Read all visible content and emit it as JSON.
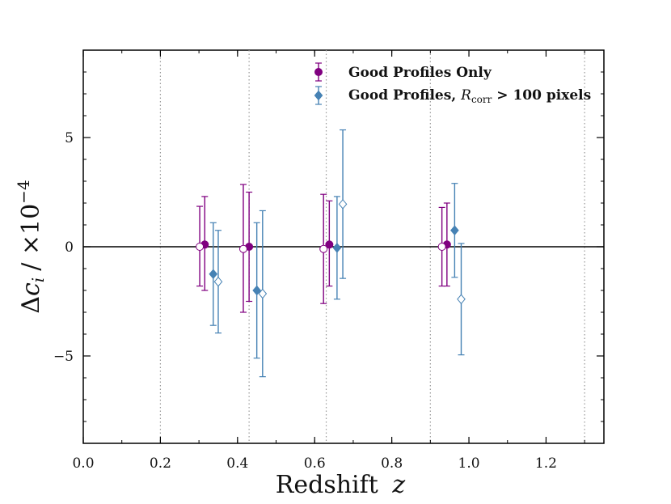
{
  "chart_data": {
    "type": "scatter",
    "xlabel": "Redshift",
    "xlabel_var": "z",
    "ylabel_main": "Δ",
    "ylabel_var": "c",
    "ylabel_sub": "i",
    "ylabel_unit": "/ ×10",
    "ylabel_exp": "−4",
    "xlim": [
      0.0,
      1.35
    ],
    "ylim": [
      -9.0,
      9.0
    ],
    "xticks": [
      0.0,
      0.2,
      0.4,
      0.6,
      0.8,
      1.0,
      1.2
    ],
    "xtick_labels": [
      "0.0",
      "0.2",
      "0.4",
      "0.6",
      "0.8",
      "1.0",
      "1.2"
    ],
    "yticks": [
      -5,
      0,
      5
    ],
    "ytick_labels": [
      "−5",
      "0",
      "5"
    ],
    "hline": 0,
    "vlines": [
      0.2,
      0.43,
      0.63,
      0.9,
      1.3
    ],
    "series": [
      {
        "name": "Good Profiles Only",
        "color": "#800080",
        "marker": "circle",
        "points": [
          {
            "x": 0.315,
            "y": 0.1,
            "yerr_low": 2.1,
            "yerr_high": 2.2
          },
          {
            "x": 0.43,
            "y": 0.0,
            "yerr_low": 2.5,
            "yerr_high": 2.5
          },
          {
            "x": 0.638,
            "y": 0.1,
            "yerr_low": 1.9,
            "yerr_high": 2.0
          },
          {
            "x": 0.943,
            "y": 0.1,
            "yerr_low": 1.9,
            "yerr_high": 1.9
          }
        ]
      },
      {
        "name": "Good Profiles Only (open)",
        "legend": false,
        "color": "#800080",
        "marker": "circle-open",
        "points": [
          {
            "x": 0.302,
            "y": 0.0,
            "yerr_low": 1.8,
            "yerr_high": 1.85
          },
          {
            "x": 0.415,
            "y": -0.1,
            "yerr_low": 2.9,
            "yerr_high": 2.95
          },
          {
            "x": 0.623,
            "y": -0.1,
            "yerr_low": 2.5,
            "yerr_high": 2.5
          },
          {
            "x": 0.93,
            "y": 0.0,
            "yerr_low": 1.8,
            "yerr_high": 1.8
          }
        ]
      },
      {
        "name": "Good Profiles, R_corr > 100 pixels",
        "color": "#4682b4",
        "marker": "diamond",
        "points": [
          {
            "x": 0.337,
            "y": -1.25,
            "yerr_low": 2.35,
            "yerr_high": 2.35
          },
          {
            "x": 0.45,
            "y": -2.0,
            "yerr_low": 3.1,
            "yerr_high": 3.1
          },
          {
            "x": 0.658,
            "y": -0.05,
            "yerr_low": 2.35,
            "yerr_high": 2.35
          },
          {
            "x": 0.963,
            "y": 0.75,
            "yerr_low": 2.15,
            "yerr_high": 2.15
          }
        ]
      },
      {
        "name": "Good Profiles, R_corr > 100 pixels (open)",
        "legend": false,
        "color": "#4682b4",
        "marker": "diamond-open",
        "points": [
          {
            "x": 0.35,
            "y": -1.6,
            "yerr_low": 2.35,
            "yerr_high": 2.35
          },
          {
            "x": 0.465,
            "y": -2.15,
            "yerr_low": 3.8,
            "yerr_high": 3.8
          },
          {
            "x": 0.673,
            "y": 1.95,
            "yerr_low": 3.4,
            "yerr_high": 3.4
          },
          {
            "x": 0.98,
            "y": -2.4,
            "yerr_low": 2.55,
            "yerr_high": 2.55
          }
        ]
      }
    ],
    "legend": {
      "position": "top-right",
      "entries": [
        {
          "label": "Good Profiles Only",
          "marker": "circle",
          "color": "#800080"
        },
        {
          "label_prefix": "Good Profiles, ",
          "label_var": "R",
          "label_sub": "corr",
          "label_suffix": " > 100 pixels",
          "marker": "diamond",
          "color": "#4682b4"
        }
      ]
    }
  }
}
